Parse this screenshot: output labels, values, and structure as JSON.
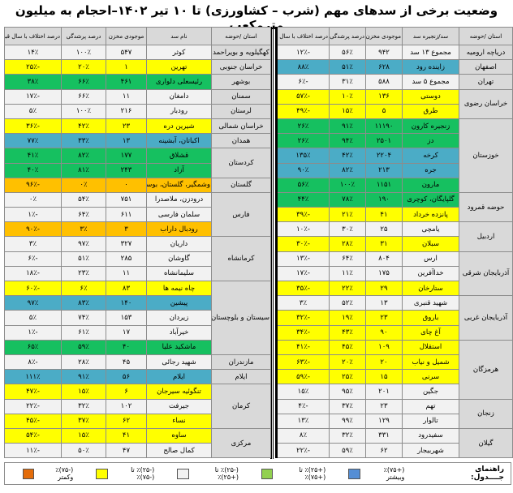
{
  "title": "وضعیت برخی از سدهای مهم (شرب – کشاورزی) تا ۱۰ تیر ۱۴۰۲–احجام به میلیون مترمکعب",
  "colors": {
    "white": "#f2f2f2",
    "yellow": "#ffff00",
    "green": "#16c060",
    "blue": "#4bacc6",
    "orange": "#ffc000"
  },
  "right_table": {
    "headers": [
      "استان /حوضه",
      "سد/زنجیره سد",
      "موجودی مخزن",
      "درصد پرشدگی",
      "درصد اختلاف با سال قبل"
    ],
    "groups": [
      {
        "province": "دریاچه ارومیه",
        "dams": [
          {
            "name": "مجموع ۱۳ سد",
            "storage": "۹۴۲",
            "fill": "۵۶٪",
            "change": "-۱۲٪",
            "category": "white"
          }
        ]
      },
      {
        "province": "اصفهان",
        "dams": [
          {
            "name": "زاینده رود",
            "storage": "۶۲۸",
            "fill": "۵۱٪",
            "change": "۸۸٪",
            "category": "blue"
          }
        ]
      },
      {
        "province": "تهران",
        "dams": [
          {
            "name": "مجموع ۵ سد",
            "storage": "۵۸۸",
            "fill": "۳۱٪",
            "change": "-۶٪",
            "category": "white"
          }
        ]
      },
      {
        "province": "خراسان رضوی",
        "dams": [
          {
            "name": "دوستی",
            "storage": "۱۳۶",
            "fill": "۱۰٪",
            "change": "-۵۷٪",
            "category": "yellow"
          },
          {
            "name": "طرق",
            "storage": "۵",
            "fill": "۱۵٪",
            "change": "-۴۹٪",
            "category": "yellow"
          }
        ]
      },
      {
        "province": "خوزستان",
        "dams": [
          {
            "name": "زنجیره کارون",
            "storage": "۱۱۱۹۰",
            "fill": "۹۱٪",
            "change": "۲۶٪",
            "category": "green"
          },
          {
            "name": "دز",
            "storage": "۲۵۰۱",
            "fill": "۹۴٪",
            "change": "۲۶٪",
            "category": "green"
          },
          {
            "name": "کرخه",
            "storage": "۲۲۰۴",
            "fill": "۴۲٪",
            "change": "۱۳۵٪",
            "category": "blue"
          },
          {
            "name": "جره",
            "storage": "۲۱۳",
            "fill": "۸۲٪",
            "change": "۹۰٪",
            "category": "blue"
          },
          {
            "name": "مارون",
            "storage": "۱۱۵۱",
            "fill": "۱۰۰٪",
            "change": "۵۶٪",
            "category": "green"
          }
        ]
      },
      {
        "province": "حوضه قمرود",
        "dams": [
          {
            "name": "گلپایگان، کوچری",
            "storage": "۱۹۰",
            "fill": "۷۸٪",
            "change": "۴۴٪",
            "category": "green"
          },
          {
            "name": "پانزده خرداد",
            "storage": "۴۱",
            "fill": "۲۱٪",
            "change": "-۳۹٪",
            "category": "yellow"
          }
        ]
      },
      {
        "province": "اردبیل",
        "dams": [
          {
            "name": "یامچی",
            "storage": "۲۵",
            "fill": "۳۰٪",
            "change": "-۱۰٪",
            "category": "white"
          },
          {
            "name": "سبلان",
            "storage": "۳۱",
            "fill": "۲۸٪",
            "change": "-۳۰٪",
            "category": "yellow"
          }
        ]
      },
      {
        "province": "آذربایجان شرقی",
        "dams": [
          {
            "name": "ارس",
            "storage": "۸۰۴",
            "fill": "۶۴٪",
            "change": "-۱۳٪",
            "category": "white"
          },
          {
            "name": "خداآفرین",
            "storage": "۱۷۵",
            "fill": "۱۱٪",
            "change": "-۱۷٪",
            "category": "white"
          },
          {
            "name": "ستارخان",
            "storage": "۲۹",
            "fill": "۲۲٪",
            "change": "-۳۵٪",
            "category": "yellow"
          }
        ]
      },
      {
        "province": "آذربایجان غربی",
        "dams": [
          {
            "name": "شهید قنبری",
            "storage": "۱۳",
            "fill": "۵۲٪",
            "change": "۳٪",
            "category": "white"
          },
          {
            "name": "باروق",
            "storage": "۲۳",
            "fill": "۱۹٪",
            "change": "-۳۲٪",
            "category": "yellow"
          },
          {
            "name": "آغ چای",
            "storage": "۹۰",
            "fill": "۴۳٪",
            "change": "-۳۴٪",
            "category": "yellow"
          }
        ]
      },
      {
        "province": "هرمزگان",
        "dams": [
          {
            "name": "استقلال",
            "storage": "۱۰۹",
            "fill": "۴۵٪",
            "change": "-۴۱٪",
            "category": "yellow"
          },
          {
            "name": "شمیل و نیاب",
            "storage": "۲۰",
            "fill": "۲۰٪",
            "change": "-۶۳٪",
            "category": "yellow"
          },
          {
            "name": "سرنی",
            "storage": "۱۵",
            "fill": "۲۵٪",
            "change": "-۵۹٪",
            "category": "yellow"
          },
          {
            "name": "جگین",
            "storage": "۲۰۱",
            "fill": "۹۵٪",
            "change": "۱۵٪",
            "category": "white"
          }
        ]
      },
      {
        "province": "زنجان",
        "dams": [
          {
            "name": "تهم",
            "storage": "۲۳",
            "fill": "۳۷٪",
            "change": "-۴٪",
            "category": "white"
          },
          {
            "name": "تالوار",
            "storage": "۱۲۹",
            "fill": "۹۹٪",
            "change": "۱۳٪",
            "category": "white"
          }
        ]
      },
      {
        "province": "گیلان",
        "dams": [
          {
            "name": "سفیدرود",
            "storage": "۳۳۱",
            "fill": "۳۲٪",
            "change": "۸٪",
            "category": "white"
          },
          {
            "name": "شهربیجار",
            "storage": "۶۲",
            "fill": "۵۹٪",
            "change": "-۲۲٪",
            "category": "white"
          }
        ]
      }
    ]
  },
  "left_table": {
    "headers": [
      "استان /حوضه",
      "نام سد",
      "موجودی مخزن",
      "درصد پرشدگی",
      "درصد اختلاف با سال قبل"
    ],
    "groups": [
      {
        "province": "کهگیلویه و بویراحمد",
        "dams": [
          {
            "name": "کوثر",
            "storage": "۵۴۷",
            "fill": "۱۰۰٪",
            "change": "۱۴٪",
            "category": "white"
          }
        ]
      },
      {
        "province": "خراسان جنوبی",
        "dams": [
          {
            "name": "تهرین",
            "storage": "۱",
            "fill": "۲۰٪",
            "change": "-۲۵٪",
            "category": "yellow"
          }
        ]
      },
      {
        "province": "بوشهر",
        "dams": [
          {
            "name": "رئیسعلی دلواری",
            "storage": "۴۶۱",
            "fill": "۶۶٪",
            "change": "۳۸٪",
            "category": "green"
          }
        ]
      },
      {
        "province": "سمنان",
        "dams": [
          {
            "name": "دامغان",
            "storage": "۱۱",
            "fill": "۶۶٪",
            "change": "-۱۷٪",
            "category": "white"
          }
        ]
      },
      {
        "province": "لرستان",
        "dams": [
          {
            "name": "رودبار",
            "storage": "۲۱۶",
            "fill": "۱۰۰٪",
            "change": "۵٪",
            "category": "white"
          }
        ]
      },
      {
        "province": "خراسان شمالی",
        "dams": [
          {
            "name": "شیرین دره",
            "storage": "۲۳",
            "fill": "۴۲٪",
            "change": "-۳۶٪",
            "category": "yellow"
          }
        ]
      },
      {
        "province": "همدان",
        "dams": [
          {
            "name": "اکباتان، آبشینه",
            "storage": "۱۳",
            "fill": "۳۳٪",
            "change": "۷۷٪",
            "category": "blue"
          }
        ]
      },
      {
        "province": "کردستان",
        "dams": [
          {
            "name": "قشلاق",
            "storage": "۱۷۷",
            "fill": "۸۲٪",
            "change": "۴۱٪",
            "category": "green"
          },
          {
            "name": "آزاد",
            "storage": "۲۴۳",
            "fill": "۸۱٪",
            "change": "۴۰٪",
            "category": "green"
          }
        ]
      },
      {
        "province": "گلستان",
        "dams": [
          {
            "name": "وشمگیر، گلستان، بوستان",
            "storage": "۰",
            "fill": "۰٪",
            "change": "-۹۶٪",
            "category": "orange"
          }
        ]
      },
      {
        "province": "فارس",
        "dams": [
          {
            "name": "درودزن، ملاصدرا",
            "storage": "۷۵۱",
            "fill": "۵۴٪",
            "change": "۰٪",
            "category": "white"
          },
          {
            "name": "سلمان فارسی",
            "storage": "۶۱۱",
            "fill": "۶۴٪",
            "change": "-۱٪",
            "category": "white"
          },
          {
            "name": "رودبال داراب",
            "storage": "۳",
            "fill": "۳٪",
            "change": "-۹۰٪",
            "category": "orange"
          }
        ]
      },
      {
        "province": "کرمانشاه",
        "dams": [
          {
            "name": "داریان",
            "storage": "۳۲۷",
            "fill": "۹۷٪",
            "change": "۳٪",
            "category": "white"
          },
          {
            "name": "گاوشان",
            "storage": "۲۸۵",
            "fill": "۵۱٪",
            "change": "-۶٪",
            "category": "white"
          },
          {
            "name": "سلیمانشاه",
            "storage": "۱۱",
            "fill": "۲۳٪",
            "change": "-۱۸٪",
            "category": "white"
          }
        ]
      },
      {
        "province": "سیستان و بلوچستان",
        "dams": [
          {
            "name": "چاه نیمه ها",
            "storage": "۸۳",
            "fill": "۶٪",
            "change": "-۶۰٪",
            "category": "yellow"
          },
          {
            "name": "پیشین",
            "storage": "۱۴۰",
            "fill": "۸۳٪",
            "change": "۹۷٪",
            "category": "blue"
          },
          {
            "name": "زیردان",
            "storage": "۱۵۳",
            "fill": "۷۴٪",
            "change": "۵٪",
            "category": "white"
          },
          {
            "name": "خیرآباد",
            "storage": "۱۷",
            "fill": "۶۱٪",
            "change": "-۱٪",
            "category": "white"
          },
          {
            "name": "ماشکید علیا",
            "storage": "۴۰",
            "fill": "۵۹٪",
            "change": "۶۵٪",
            "category": "green"
          }
        ]
      },
      {
        "province": "مازندران",
        "dams": [
          {
            "name": "شهید رجائی",
            "storage": "۴۵",
            "fill": "۲۸٪",
            "change": "-۸٪",
            "category": "white"
          }
        ]
      },
      {
        "province": "ایلام",
        "dams": [
          {
            "name": "ایلام",
            "storage": "۵۶",
            "fill": "۹۱٪",
            "change": "۱۱۱٪",
            "category": "blue"
          }
        ]
      },
      {
        "province": "کرمان",
        "dams": [
          {
            "name": "تنگوئیه سیرجان",
            "storage": "۶",
            "fill": "۱۵٪",
            "change": "-۴۷٪",
            "category": "yellow"
          },
          {
            "name": "جیرفت",
            "storage": "۱۰۲",
            "fill": "۳۲٪",
            "change": "-۲۲٪",
            "category": "white"
          },
          {
            "name": "نساء",
            "storage": "۶۲",
            "fill": "۳۷٪",
            "change": "-۴۵٪",
            "category": "yellow"
          }
        ]
      },
      {
        "province": "مرکزی",
        "dams": [
          {
            "name": "ساوه",
            "storage": "۴۱",
            "fill": "۱۵٪",
            "change": "-۵۴٪",
            "category": "yellow"
          },
          {
            "name": "کمال صالح",
            "storage": "۴۷",
            "fill": "۵۰٪",
            "change": "-۱۱٪",
            "category": "white"
          }
        ]
      }
    ]
  },
  "legend": {
    "label": "راهنمای جــــدول:",
    "items": [
      {
        "text": "(+۷۵)٪ وبیشتر",
        "color": "#558ed5"
      },
      {
        "text": "(+۲۵)٪ تا (+۷۵)٪",
        "color": "#92d050"
      },
      {
        "text": "(-۲۵)٪ تا (+۲۵)٪",
        "color": "#f2f2f2"
      },
      {
        "text": "(-۲۵)٪ تا (-۷۵)٪",
        "color": "#ffff00"
      },
      {
        "text": "(-۷۵)٪ وکمتر",
        "color": "#e46c0a"
      }
    ]
  }
}
